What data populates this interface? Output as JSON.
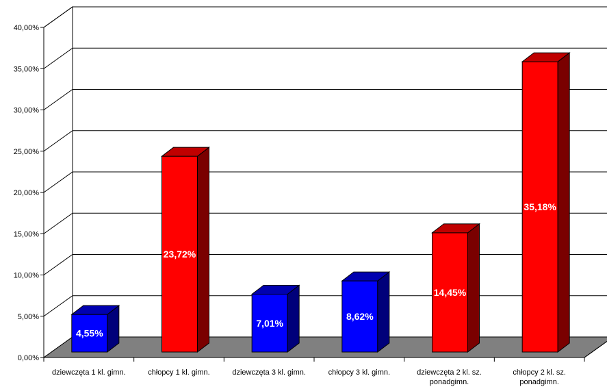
{
  "chart_data": {
    "type": "bar",
    "categories": [
      [
        "dziewczęta 1 kl. gimn."
      ],
      [
        "chłopcy 1 kl. gimn."
      ],
      [
        "dziewczęta 3 kl. gimn."
      ],
      [
        "chłopcy 3 kl. gimn."
      ],
      [
        "dziewczęta 2 kl. sz.",
        "ponadgimn."
      ],
      [
        "chłopcy 2 kl. sz.",
        "ponadgimn."
      ]
    ],
    "values": [
      4.55,
      23.72,
      7.01,
      8.62,
      14.45,
      35.18
    ],
    "data_labels": [
      "4,55%",
      "23,72%",
      "7,01%",
      "8,62%",
      "14,45%",
      "35,18%"
    ],
    "ylim": [
      0,
      40
    ],
    "yticks": [
      0,
      5,
      10,
      15,
      20,
      25,
      30,
      35,
      40
    ],
    "ytick_labels": [
      "0,00%",
      "5,00%",
      "10,00%",
      "15,00%",
      "20,00%",
      "25,00%",
      "30,00%",
      "35,00%",
      "40,00%"
    ],
    "grid": true,
    "legend": "none",
    "style": "3d-column",
    "colors": {
      "blue_front": "#0000ff",
      "blue_top": "#0000b0",
      "blue_side": "#00007a",
      "red_front": "#ff0000",
      "red_top": "#c00000",
      "red_side": "#7a0000",
      "floor": "#808080"
    },
    "bar_colors": [
      "blue",
      "red",
      "blue",
      "blue",
      "red",
      "red"
    ]
  }
}
